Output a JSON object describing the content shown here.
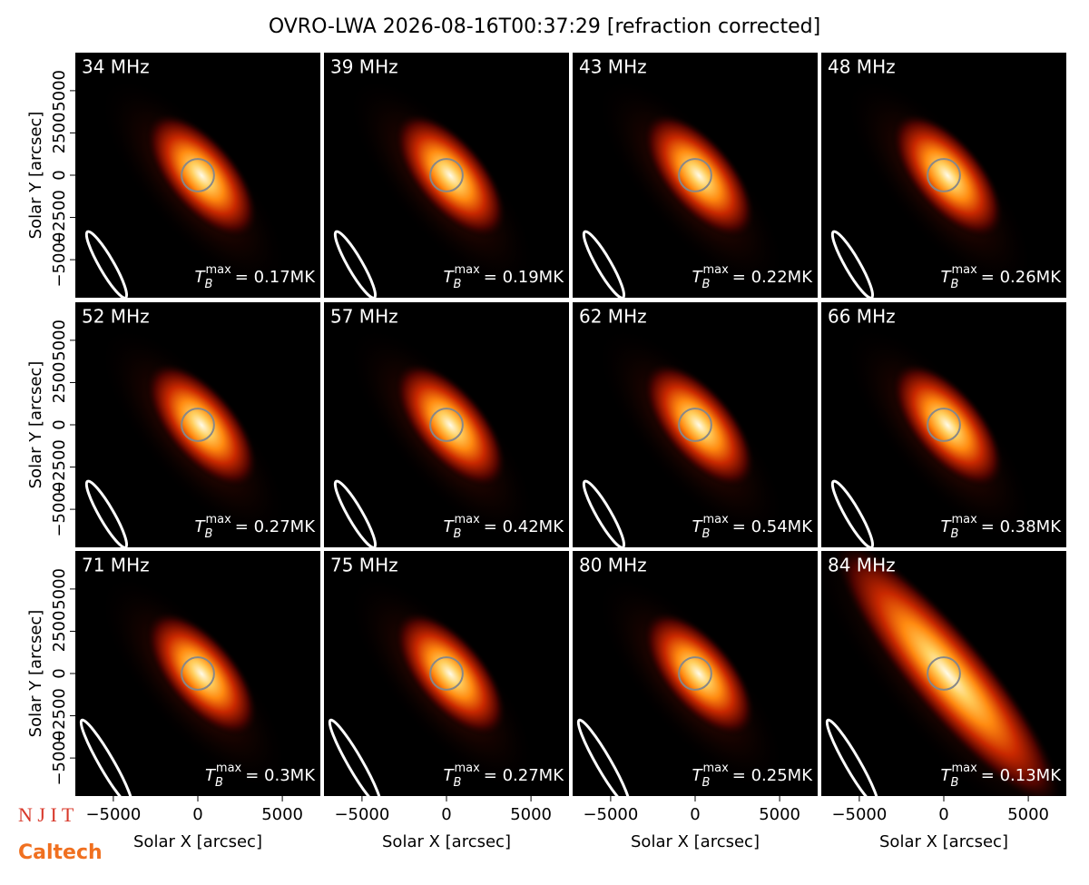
{
  "title": "OVRO-LWA 2026-08-16T00:37:29 [refraction corrected]",
  "logos": [
    "N J I T",
    "Caltech"
  ],
  "chart_data": [
    {
      "type": "image",
      "label": "34 MHz",
      "annotation": {
        "symbol": "T",
        "subscript": "B",
        "superscript": "max",
        "text": "= 0.17MK"
      },
      "xlim": [
        -7250,
        7250
      ],
      "ylim": [
        -7250,
        7250
      ],
      "ylabel": "Solar Y [arcsec]",
      "yticks": [
        {
          "value": -5000,
          "label": "−5000"
        },
        {
          "value": -2500,
          "label": "−2500"
        },
        0,
        2500,
        5000
      ]
    },
    {
      "type": "image",
      "label": "39 MHz",
      "annotation": {
        "symbol": "T",
        "subscript": "B",
        "superscript": "max",
        "text": "= 0.19MK"
      },
      "xlim": [
        -7250,
        7250
      ],
      "ylim": [
        -7250,
        7250
      ]
    },
    {
      "type": "image",
      "label": "43 MHz",
      "annotation": {
        "symbol": "T",
        "subscript": "B",
        "superscript": "max",
        "text": "= 0.22MK"
      },
      "xlim": [
        -7250,
        7250
      ],
      "ylim": [
        -7250,
        7250
      ]
    },
    {
      "type": "image",
      "label": "48 MHz",
      "annotation": {
        "symbol": "T",
        "subscript": "B",
        "superscript": "max",
        "text": "= 0.26MK"
      },
      "xlim": [
        -7250,
        7250
      ],
      "ylim": [
        -7250,
        7250
      ]
    },
    {
      "type": "image",
      "label": "52 MHz",
      "annotation": {
        "symbol": "T",
        "subscript": "B",
        "superscript": "max",
        "text": "= 0.27MK"
      },
      "xlim": [
        -7250,
        7250
      ],
      "ylim": [
        -7250,
        7250
      ],
      "ylabel": "Solar Y [arcsec]",
      "yticks": [
        {
          "value": -5000,
          "label": "−5000"
        },
        {
          "value": -2500,
          "label": "−2500"
        },
        0,
        2500,
        5000
      ]
    },
    {
      "type": "image",
      "label": "57 MHz",
      "annotation": {
        "symbol": "T",
        "subscript": "B",
        "superscript": "max",
        "text": "= 0.42MK"
      },
      "xlim": [
        -7250,
        7250
      ],
      "ylim": [
        -7250,
        7250
      ]
    },
    {
      "type": "image",
      "label": "62 MHz",
      "annotation": {
        "symbol": "T",
        "subscript": "B",
        "superscript": "max",
        "text": "= 0.54MK"
      },
      "xlim": [
        -7250,
        7250
      ],
      "ylim": [
        -7250,
        7250
      ]
    },
    {
      "type": "image",
      "label": "66 MHz",
      "annotation": {
        "symbol": "T",
        "subscript": "B",
        "superscript": "max",
        "text": "= 0.38MK"
      },
      "xlim": [
        -7250,
        7250
      ],
      "ylim": [
        -7250,
        7250
      ]
    },
    {
      "type": "image",
      "label": "71 MHz",
      "annotation": {
        "symbol": "T",
        "subscript": "B",
        "superscript": "max",
        "text": "= 0.3MK"
      },
      "xlim": [
        -7250,
        7250
      ],
      "ylim": [
        -7250,
        7250
      ],
      "ylabel": "Solar Y [arcsec]",
      "yticks": [
        {
          "value": -5000,
          "label": "−5000"
        },
        {
          "value": -2500,
          "label": "−2500"
        },
        0,
        2500,
        5000
      ],
      "xlabel": "Solar X [arcsec]",
      "xticks": [
        {
          "value": -5000,
          "label": "−5000"
        },
        0,
        5000
      ]
    },
    {
      "type": "image",
      "label": "75 MHz",
      "annotation": {
        "symbol": "T",
        "subscript": "B",
        "superscript": "max",
        "text": "= 0.27MK"
      },
      "xlim": [
        -7250,
        7250
      ],
      "ylim": [
        -7250,
        7250
      ],
      "xlabel": "Solar X [arcsec]",
      "xticks": [
        {
          "value": -5000,
          "label": "−5000"
        },
        0,
        5000
      ]
    },
    {
      "type": "image",
      "label": "80 MHz",
      "annotation": {
        "symbol": "T",
        "subscript": "B",
        "superscript": "max",
        "text": "= 0.25MK"
      },
      "xlim": [
        -7250,
        7250
      ],
      "ylim": [
        -7250,
        7250
      ],
      "xlabel": "Solar X [arcsec]",
      "xticks": [
        {
          "value": -5000,
          "label": "−5000"
        },
        0,
        5000
      ]
    },
    {
      "type": "image",
      "label": "84 MHz",
      "annotation": {
        "symbol": "T",
        "subscript": "B",
        "superscript": "max",
        "text": "= 0.13MK"
      },
      "xlim": [
        -7250,
        7250
      ],
      "ylim": [
        -7250,
        7250
      ],
      "xlabel": "Solar X [arcsec]",
      "xticks": [
        {
          "value": -5000,
          "label": "−5000"
        },
        0,
        5000
      ]
    }
  ]
}
